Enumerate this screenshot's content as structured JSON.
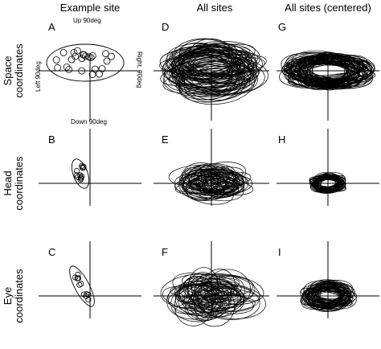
{
  "columns": [
    "Example site",
    "All sites",
    "All sites (centered)"
  ],
  "rows": [
    [
      "Space",
      "coordinates"
    ],
    [
      "Head",
      "coordinates"
    ],
    [
      "Eye",
      "coordinates"
    ]
  ],
  "panels": [
    {
      "letter": "A",
      "row": 0,
      "col": 0,
      "kind": "example"
    },
    {
      "letter": "D",
      "row": 0,
      "col": 1,
      "kind": "all"
    },
    {
      "letter": "G",
      "row": 0,
      "col": 2,
      "kind": "centered"
    },
    {
      "letter": "B",
      "row": 1,
      "col": 0,
      "kind": "example"
    },
    {
      "letter": "E",
      "row": 1,
      "col": 1,
      "kind": "all"
    },
    {
      "letter": "H",
      "row": 1,
      "col": 2,
      "kind": "centered"
    },
    {
      "letter": "C",
      "row": 2,
      "col": 0,
      "kind": "example"
    },
    {
      "letter": "F",
      "row": 2,
      "col": 1,
      "kind": "all"
    },
    {
      "letter": "I",
      "row": 2,
      "col": 2,
      "kind": "centered"
    }
  ],
  "axis_annotations": {
    "up": "Up  90deg",
    "down": "Down  90deg",
    "left": "Left  90deg",
    "right": "Right, 90deg"
  },
  "colors": {
    "ink": "#000000",
    "background": "#ffffff"
  }
}
